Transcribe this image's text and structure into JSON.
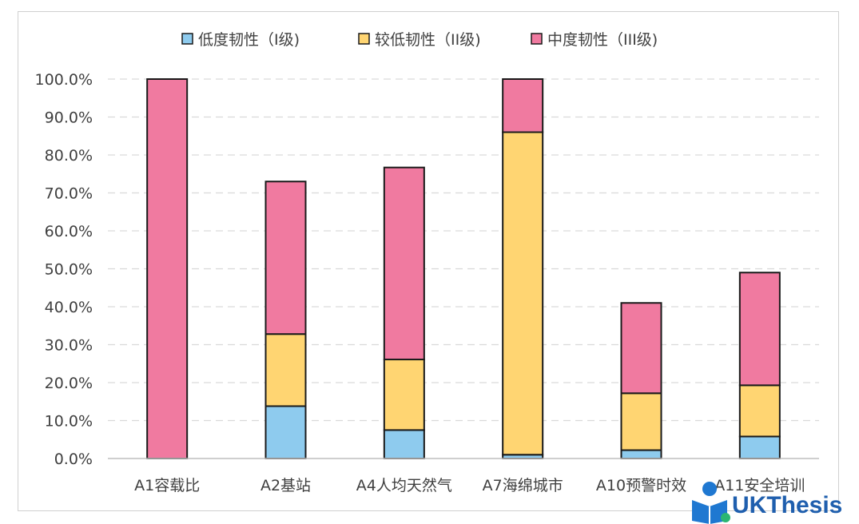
{
  "chart_data": {
    "type": "bar",
    "stacked": true,
    "categories": [
      "A1容载比",
      "A2基站",
      "A4人均天然气",
      "A7海绵城市",
      "A10预警时效",
      "A11安全培训"
    ],
    "series": [
      {
        "name": "低度韧性（I级)",
        "color": "#8ecbee",
        "values": [
          0,
          13.8,
          7.5,
          1.0,
          2.2,
          5.8
        ]
      },
      {
        "name": "较低韧性（II级)",
        "color": "#ffd572",
        "values": [
          0,
          19.0,
          18.6,
          85.0,
          15.0,
          13.5
        ]
      },
      {
        "name": "中度韧性（III级)",
        "color": "#f07aa0",
        "values": [
          100,
          40.2,
          50.6,
          14.0,
          23.8,
          29.7
        ]
      }
    ],
    "ylim": [
      0,
      100
    ],
    "yticks": [
      "0.0%",
      "10.0%",
      "20.0%",
      "30.0%",
      "40.0%",
      "50.0%",
      "60.0%",
      "70.0%",
      "80.0%",
      "90.0%",
      "100.0%"
    ],
    "grid": true,
    "legend": "top-center"
  },
  "watermark": {
    "text": "UKThesis"
  }
}
